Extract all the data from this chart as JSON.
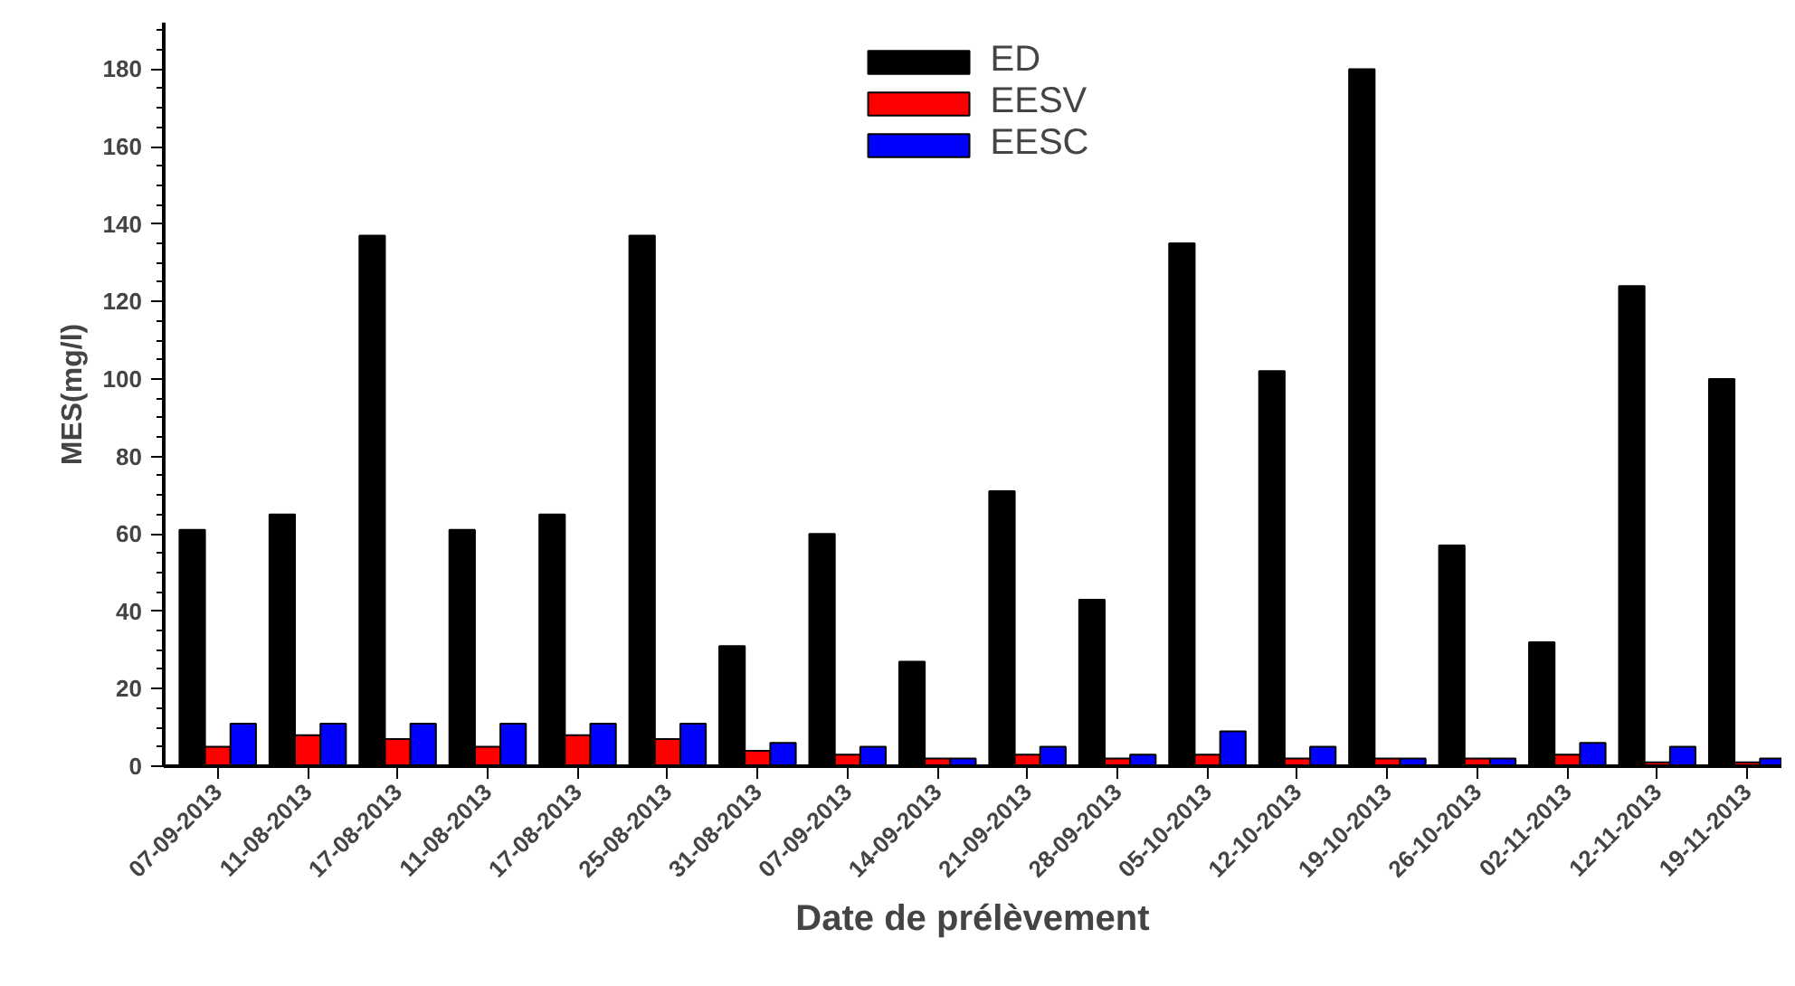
{
  "chart_data": {
    "type": "bar",
    "xlabel": "Date de prélèvement",
    "ylabel": "MES(mg/l)",
    "categories": [
      "07-09-2013",
      "11-08-2013",
      "17-08-2013",
      "11-08-2013",
      "17-08-2013",
      "25-08-2013",
      "31-08-2013",
      "07-09-2013",
      "14-09-2013",
      "21-09-2013",
      "28-09-2013",
      "05-10-2013",
      "12-10-2013",
      "19-10-2013",
      "26-10-2013",
      "02-11-2013",
      "12-11-2013",
      "19-11-2013"
    ],
    "series": [
      {
        "name": "ED",
        "color": "#000000",
        "values": [
          61,
          65,
          137,
          61,
          65,
          137,
          31,
          60,
          27,
          71,
          43,
          135,
          102,
          180,
          57,
          32,
          124,
          100
        ]
      },
      {
        "name": "EESV",
        "color": "#ff0000",
        "values": [
          5,
          8,
          7,
          5,
          8,
          7,
          4,
          3,
          2,
          3,
          2,
          3,
          2,
          2,
          2,
          3,
          1,
          1
        ]
      },
      {
        "name": "EESC",
        "color": "#0000ff",
        "values": [
          11,
          11,
          11,
          11,
          11,
          11,
          6,
          5,
          2,
          5,
          3,
          9,
          5,
          2,
          2,
          6,
          5,
          2
        ]
      }
    ],
    "ylim": [
      0,
      192
    ],
    "yticks": [
      0,
      20,
      40,
      60,
      80,
      100,
      120,
      140,
      160,
      180
    ],
    "legend": "top",
    "grid": false
  }
}
